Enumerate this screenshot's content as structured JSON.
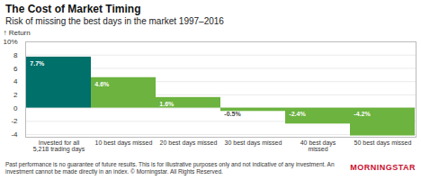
{
  "chart_data": {
    "type": "bar",
    "title": "The Cost of Market Timing",
    "subtitle": "Risk of missing the best days in the market 1997–2016",
    "y_label": "Return",
    "categories": [
      "Invested for all 5,218 trading days",
      "10 best days missed",
      "20 best days missed",
      "30 best days missed",
      "40 best days missed",
      "50 best days missed"
    ],
    "values": [
      7.7,
      4.6,
      1.6,
      -0.5,
      -2.4,
      -4.2
    ],
    "value_labels": [
      "7.7%",
      "4.6%",
      "1.6%",
      "-0.5%",
      "-2.4%",
      "-4.2%"
    ],
    "colors": [
      "#00706a",
      "#6cb33f",
      "#6cb33f",
      "#6cb33f",
      "#6cb33f",
      "#6cb33f"
    ],
    "ylim": [
      -4.4,
      10
    ],
    "yticks": [
      {
        "value": 10,
        "label": "10%"
      },
      8,
      6,
      4,
      2,
      0,
      -2,
      -4
    ],
    "grid": true,
    "data_labels": true,
    "caption": "Past performance is no guarantee of future results. This is for illustrative purposes only and not indicative of any investment. An investment cannot be made directly in an index. © Morningstar. All Rights Reserved.",
    "logo": "MORNINGSTAR"
  }
}
